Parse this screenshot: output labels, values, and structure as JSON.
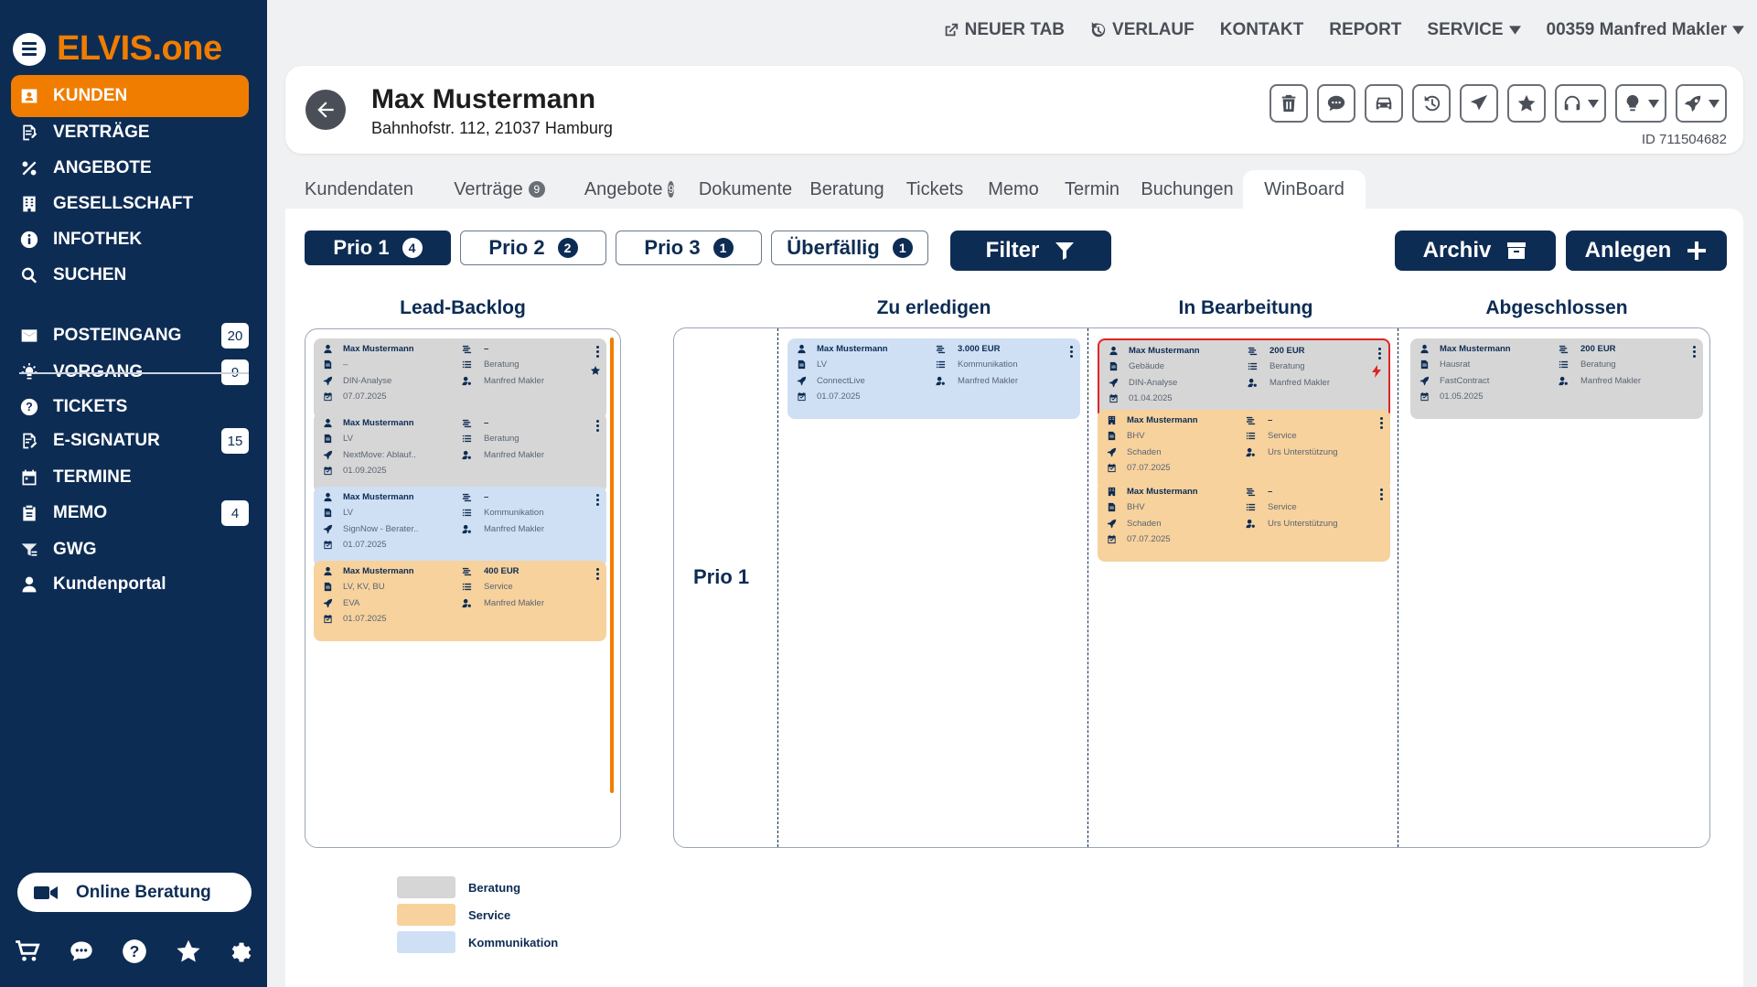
{
  "app": {
    "logo": "ELVIS.one"
  },
  "sidebar": {
    "items": [
      {
        "label": "KUNDEN",
        "icon": "person-card-icon",
        "active": true
      },
      {
        "label": "VERTRÄGE",
        "icon": "contract-icon"
      },
      {
        "label": "ANGEBOTE",
        "icon": "percent-icon"
      },
      {
        "label": "GESELLSCHAFT",
        "icon": "building-icon"
      },
      {
        "label": "INFOTHEK",
        "icon": "info-icon"
      },
      {
        "label": "SUCHEN",
        "icon": "search-icon"
      },
      {
        "label": "POSTEINGANG",
        "icon": "mail-icon",
        "badge": "20"
      },
      {
        "label": "VORGANG",
        "icon": "lightbulb-icon",
        "badge": "9"
      },
      {
        "label": "TICKETS",
        "icon": "question-icon"
      },
      {
        "label": "E-SIGNATUR",
        "icon": "signature-icon",
        "badge": "15"
      },
      {
        "label": "TERMINE",
        "icon": "calendar-icon"
      },
      {
        "label": "MEMO",
        "icon": "clipboard-icon",
        "badge": "4"
      },
      {
        "label": "GWG",
        "icon": "gwg-icon"
      },
      {
        "label": "Kundenportal",
        "icon": "user-icon"
      }
    ],
    "online_button": "Online Beratung"
  },
  "topnav": {
    "new_tab": "NEUER TAB",
    "history": "VERLAUF",
    "contact": "KONTAKT",
    "report": "REPORT",
    "service": "SERVICE",
    "user": "00359 Manfred Makler"
  },
  "customer": {
    "name": "Max Mustermann",
    "address": "Bahnhofstr. 112, 21037 Hamburg",
    "id": "ID 711504682"
  },
  "tabs": [
    {
      "label": "Kundendaten"
    },
    {
      "label": "Verträge",
      "count": "9"
    },
    {
      "label": "Angebote",
      "count": "9"
    },
    {
      "label": "Dokumente"
    },
    {
      "label": "Beratung"
    },
    {
      "label": "Tickets"
    },
    {
      "label": "Memo"
    },
    {
      "label": "Termin"
    },
    {
      "label": "Buchungen"
    },
    {
      "label": "WinBoard",
      "active": true
    }
  ],
  "filters": {
    "prio1": {
      "label": "Prio 1",
      "count": "4"
    },
    "prio2": {
      "label": "Prio 2",
      "count": "2"
    },
    "prio3": {
      "label": "Prio 3",
      "count": "1"
    },
    "overdue": {
      "label": "Überfällig",
      "count": "1"
    },
    "filter": "Filter",
    "archive": "Archiv",
    "create": "Anlegen"
  },
  "board": {
    "columns": {
      "backlog": "Lead-Backlog",
      "todo": "Zu erledigen",
      "progress": "In Bearbeitung",
      "done": "Abgeschlossen"
    },
    "row_label": "Prio 1",
    "backlog_cards": [
      {
        "name": "Max Mustermann",
        "amount": "–",
        "product": "–",
        "category": "Beratung",
        "task": "DIN-Analyse",
        "owner": "Manfred Makler",
        "date": "07.07.2025",
        "color": "gray",
        "starred": true
      },
      {
        "name": "Max Mustermann",
        "amount": "–",
        "product": "LV",
        "category": "Beratung",
        "task": "NextMove: Ablauf..",
        "owner": "Manfred Makler",
        "date": "01.09.2025",
        "color": "gray"
      },
      {
        "name": "Max Mustermann",
        "amount": "–",
        "product": "LV",
        "category": "Kommunikation",
        "task": "SignNow - Berater..",
        "owner": "Manfred Makler",
        "date": "01.07.2025",
        "color": "blue"
      },
      {
        "name": "Max Mustermann",
        "amount": "400 EUR",
        "product": "LV, KV, BU",
        "category": "Service",
        "task": "EVA",
        "owner": "Manfred Makler",
        "date": "01.07.2025",
        "color": "orange"
      }
    ],
    "todo_cards": [
      {
        "name": "Max Mustermann",
        "amount": "3.000 EUR",
        "product": "LV",
        "category": "Kommunikation",
        "task": "ConnectLive",
        "owner": "Manfred Makler",
        "date": "01.07.2025",
        "color": "blue"
      }
    ],
    "progress_cards": [
      {
        "name": "Max Mustermann",
        "amount": "200 EUR",
        "product": "Gebäude",
        "category": "Beratung",
        "task": "DIN-Analyse",
        "owner": "Manfred Makler",
        "date": "01.04.2025",
        "color": "gray",
        "alert": true
      },
      {
        "name": "Max Mustermann",
        "amount": "–",
        "product": "BHV",
        "category": "Service",
        "task": "Schaden",
        "owner": "Urs Unterstützung",
        "date": "07.07.2025",
        "color": "orange"
      },
      {
        "name": "Max Mustermann",
        "amount": "–",
        "product": "BHV",
        "category": "Service",
        "task": "Schaden",
        "owner": "Urs Unterstützung",
        "date": "07.07.2025",
        "color": "orange"
      }
    ],
    "done_cards": [
      {
        "name": "Max Mustermann",
        "amount": "200 EUR",
        "product": "Hausrat",
        "category": "Beratung",
        "task": "FastContract",
        "owner": "Manfred Makler",
        "date": "01.05.2025",
        "color": "gray"
      }
    ]
  },
  "legend": [
    {
      "label": "Beratung",
      "color": "#d6d6d6"
    },
    {
      "label": "Service",
      "color": "#f7d29d"
    },
    {
      "label": "Kommunikation",
      "color": "#cfe0f5"
    }
  ]
}
